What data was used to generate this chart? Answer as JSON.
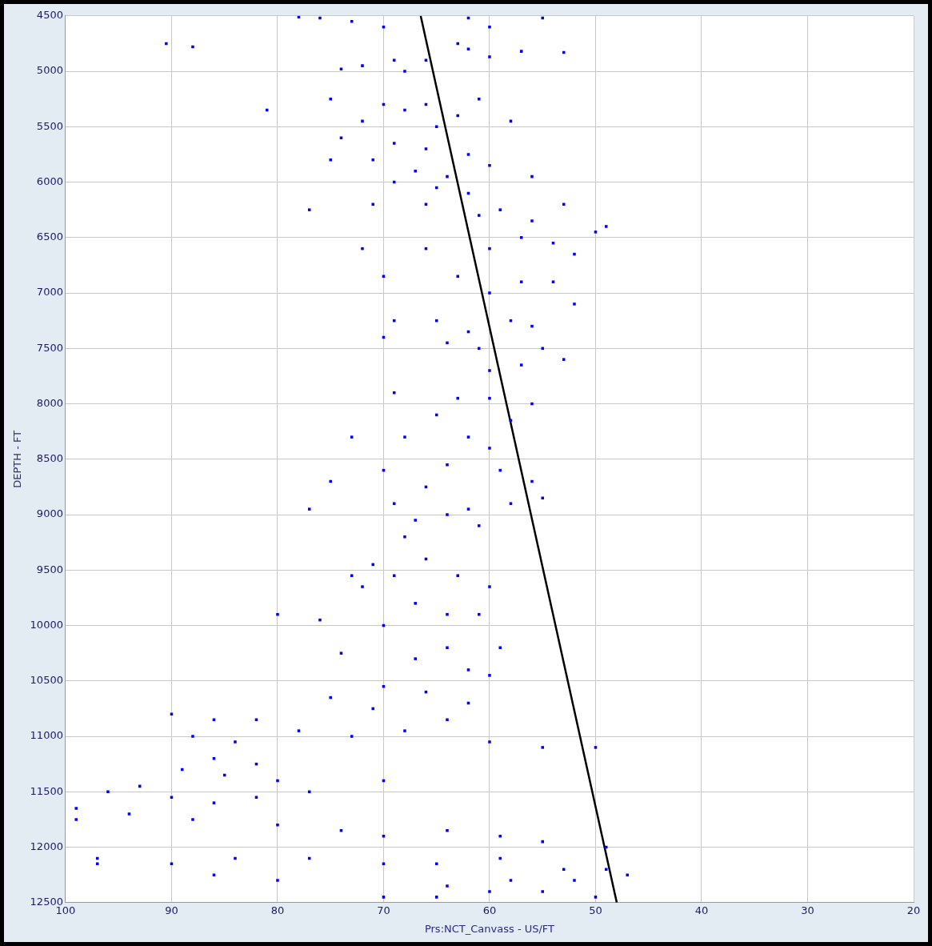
{
  "chart_data": {
    "type": "scatter",
    "xlabel": "Prs:NCT_Canvass - US/FT",
    "ylabel": "DEPTH - FT",
    "xlim": [
      100,
      20
    ],
    "xticks": [
      100,
      90,
      80,
      70,
      60,
      50,
      40,
      30,
      20
    ],
    "ylim": [
      12500,
      4500
    ],
    "yticks": [
      4500,
      5000,
      5500,
      6000,
      6500,
      7000,
      7500,
      8000,
      8500,
      9000,
      9500,
      10000,
      10500,
      11000,
      11500,
      12000,
      12500
    ],
    "grid": true,
    "legend": false,
    "series": [
      {
        "color": "#0000ff",
        "marker": "square",
        "x": [
          76,
          73,
          70,
          78,
          90.5,
          88,
          62,
          60,
          55,
          57,
          63,
          69,
          72,
          66,
          68,
          74,
          62,
          53,
          60,
          75,
          70,
          66,
          61,
          63,
          68,
          81,
          72,
          65,
          58,
          74,
          69,
          66,
          62,
          71,
          67,
          64,
          60,
          56,
          75,
          69,
          65,
          62,
          66,
          71,
          59,
          53,
          77,
          61,
          56,
          50,
          49,
          57,
          54,
          60,
          52,
          72,
          66,
          63,
          70,
          57,
          54,
          60,
          52,
          69,
          65,
          58,
          62,
          56,
          70,
          64,
          61,
          55,
          53,
          57,
          60,
          69,
          63,
          60,
          56,
          58,
          65,
          73,
          68,
          62,
          60,
          64,
          59,
          70,
          75,
          66,
          56,
          55,
          77,
          69,
          64,
          62,
          58,
          67,
          61,
          68,
          71,
          66,
          73,
          69,
          63,
          60,
          72,
          67,
          64,
          61,
          76,
          80,
          70,
          64,
          59,
          74,
          67,
          62,
          60,
          70,
          66,
          62,
          64,
          71,
          75,
          90,
          86,
          82,
          88,
          84,
          78,
          73,
          68,
          60,
          55,
          50,
          86,
          82,
          89,
          85,
          80,
          93,
          96,
          99,
          90,
          86,
          82,
          77,
          70,
          94,
          88,
          80,
          74,
          70,
          64,
          59,
          55,
          49,
          97,
          90,
          84,
          77,
          70,
          65,
          59,
          53,
          49,
          47,
          52,
          58,
          64,
          70,
          65,
          60,
          55,
          50,
          80,
          86,
          99,
          97
        ],
        "values": [
          4520,
          4550,
          4600,
          4510,
          4750,
          4780,
          4520,
          4600,
          4520,
          4820,
          4750,
          4900,
          4950,
          4900,
          5000,
          4980,
          4800,
          4830,
          4870,
          5250,
          5300,
          5300,
          5250,
          5400,
          5350,
          5350,
          5450,
          5500,
          5450,
          5600,
          5650,
          5700,
          5750,
          5800,
          5900,
          5950,
          5850,
          5950,
          5800,
          6000,
          6050,
          6100,
          6200,
          6200,
          6250,
          6200,
          6250,
          6300,
          6350,
          6450,
          6400,
          6500,
          6550,
          6600,
          6650,
          6600,
          6600,
          6850,
          6850,
          6900,
          6900,
          7000,
          7100,
          7250,
          7250,
          7250,
          7350,
          7300,
          7400,
          7450,
          7500,
          7500,
          7600,
          7650,
          7700,
          7900,
          7950,
          7950,
          8000,
          8150,
          8100,
          8300,
          8300,
          8300,
          8400,
          8550,
          8600,
          8600,
          8700,
          8750,
          8700,
          8850,
          8950,
          8900,
          9000,
          8950,
          8900,
          9050,
          9100,
          9200,
          9450,
          9400,
          9550,
          9550,
          9550,
          9650,
          9650,
          9800,
          9900,
          9900,
          9950,
          9900,
          10000,
          10200,
          10200,
          10250,
          10300,
          10400,
          10450,
          10550,
          10600,
          10700,
          10850,
          10750,
          10650,
          10800,
          10850,
          10850,
          11000,
          11050,
          10950,
          11000,
          10950,
          11050,
          11100,
          11100,
          11200,
          11250,
          11300,
          11350,
          11400,
          11450,
          11500,
          11650,
          11550,
          11600,
          11550,
          11500,
          11400,
          11700,
          11750,
          11800,
          11850,
          11900,
          11850,
          11900,
          11950,
          12000,
          12100,
          12150,
          12100,
          12100,
          12150,
          12150,
          12100,
          12200,
          12200,
          12250,
          12300,
          12300,
          12350,
          12450,
          12450,
          12400,
          12400,
          12450,
          12300,
          12250,
          11750,
          12150
        ]
      },
      {
        "type": "line",
        "color": "#000000",
        "marker": "none",
        "x": [
          66.5,
          48
        ],
        "values": [
          4500,
          12500
        ]
      }
    ]
  }
}
